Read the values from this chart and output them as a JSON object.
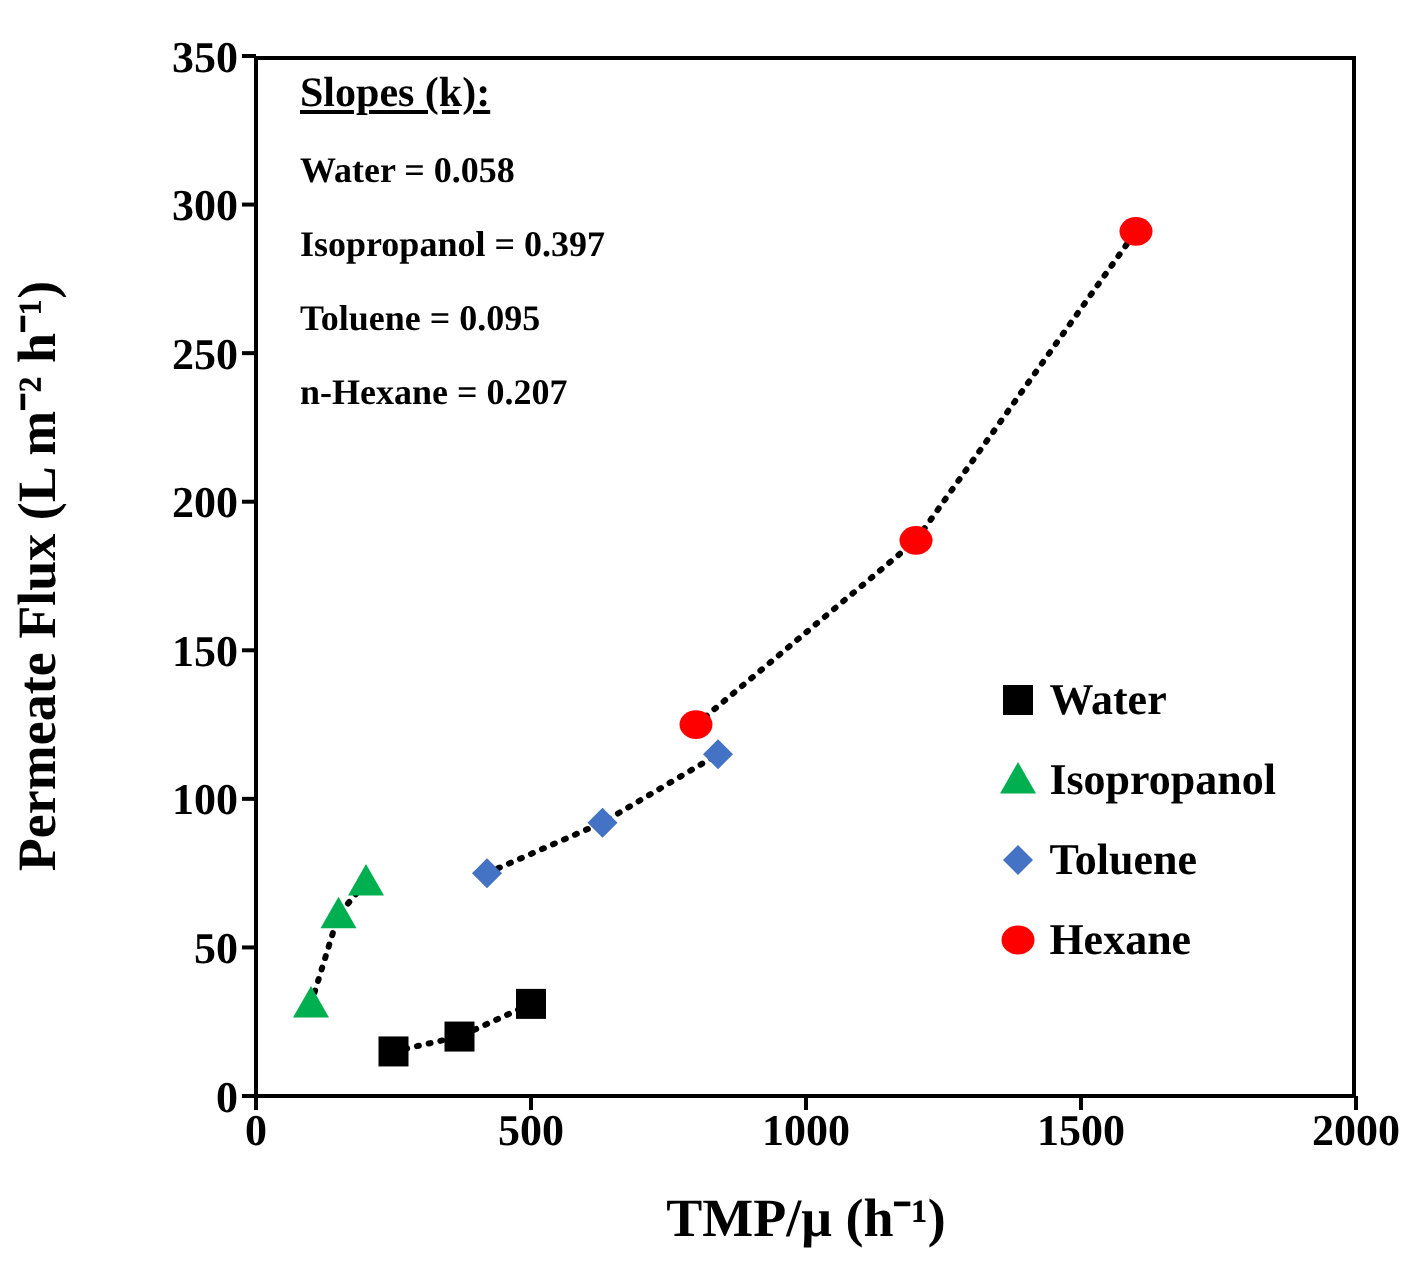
{
  "chart_data": {
    "type": "scatter",
    "xlabel": "TMP/μ (h⁻¹)",
    "ylabel": "Permeate Flux (L m⁻² h⁻¹)",
    "xlim": [
      0,
      2000
    ],
    "xticks": [
      0,
      500,
      1000,
      1500,
      2000
    ],
    "ylim": [
      0,
      350
    ],
    "yticks": [
      0,
      50,
      100,
      150,
      200,
      250,
      300,
      350
    ],
    "grid": false,
    "legend": "right",
    "annotations": [
      "Slopes (k):",
      "Water = 0.058",
      "Isopropanol = 0.397",
      "Toluene = 0.095",
      "n-Hexane = 0.207"
    ],
    "series": [
      {
        "type": "line",
        "color": "#000000",
        "line_style": "dotted",
        "marker": "none",
        "x": [
          250,
          370,
          500
        ],
        "values": [
          15,
          20,
          31
        ]
      },
      {
        "type": "line",
        "color": "#000000",
        "line_style": "dotted",
        "marker": "none",
        "x": [
          100,
          150,
          200
        ],
        "values": [
          31,
          61,
          72
        ]
      },
      {
        "type": "line",
        "color": "#000000",
        "line_style": "dotted",
        "marker": "none",
        "x": [
          420,
          630,
          840
        ],
        "values": [
          75,
          92,
          115
        ]
      },
      {
        "type": "line",
        "color": "#000000",
        "line_style": "dotted",
        "marker": "none",
        "x": [
          800,
          1200,
          1600
        ],
        "values": [
          125,
          187,
          291
        ]
      },
      {
        "name": "Water",
        "color": "#000000",
        "marker": "square",
        "x": [
          250,
          370,
          500
        ],
        "values": [
          15,
          20,
          31
        ]
      },
      {
        "name": "Isopropanol",
        "color": "#00b050",
        "marker": "triangle",
        "x": [
          100,
          150,
          200
        ],
        "values": [
          31,
          61,
          72
        ]
      },
      {
        "name": "Toluene",
        "color": "#4472c4",
        "marker": "diamond",
        "x": [
          420,
          630,
          840
        ],
        "values": [
          75,
          92,
          115
        ]
      },
      {
        "name": "Hexane",
        "color": "#ff0000",
        "marker": "circle",
        "x": [
          800,
          1200,
          1600
        ],
        "values": [
          125,
          187,
          291
        ]
      }
    ]
  }
}
